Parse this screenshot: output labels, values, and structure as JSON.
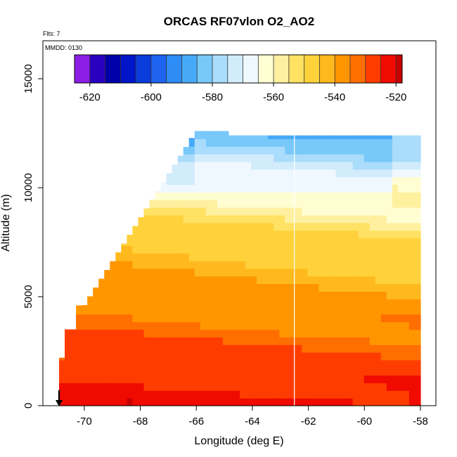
{
  "chart_data": {
    "type": "heatmap",
    "title": "ORCAS RF07vlon O2_AO2",
    "subtitle_flights": "Flts: 7",
    "subtitle_date": "MMDD: 0130",
    "xlabel": "Longitude (deg E)",
    "ylabel": "Altitude (m)",
    "xlim": [
      -71.0,
      -57.5
    ],
    "ylim": [
      0,
      16500
    ],
    "xticks": [
      -70,
      -68,
      -66,
      -64,
      -62,
      -60,
      -58
    ],
    "xtick_labels": [
      "-70",
      "-68",
      "-66",
      "-64",
      "-62",
      "-60",
      "-58"
    ],
    "yticks": [
      0,
      5000,
      10000,
      15000
    ],
    "ytick_labels": [
      "0",
      "5000",
      "10000",
      "15000"
    ],
    "colorbar": {
      "range": [
        -625,
        -518
      ],
      "ticks": [
        -620,
        -600,
        -580,
        -560,
        -540,
        -520
      ],
      "tick_labels": [
        "-620",
        "-600",
        "-580",
        "-560",
        "-540",
        "-520"
      ],
      "bins": [
        -625,
        -620,
        -615,
        -610,
        -605,
        -600,
        -595,
        -590,
        -585,
        -580,
        -575,
        -570,
        -565,
        -560,
        -555,
        -550,
        -545,
        -540,
        -535,
        -530,
        -525,
        -520,
        -518
      ],
      "colors": [
        "#8c1ee6",
        "#2a00c0",
        "#0000a8",
        "#0014c8",
        "#0a3cdc",
        "#1e64f0",
        "#2d8cf5",
        "#46aaf8",
        "#78c8fa",
        "#aadcfb",
        "#d2ecfc",
        "#f0f8ff",
        "#fffdd2",
        "#fff0a0",
        "#ffe164",
        "#ffd23c",
        "#ffb91e",
        "#ff9600",
        "#ff6e00",
        "#ff3c00",
        "#f00a00",
        "#c80000",
        "#961414"
      ]
    },
    "profile_longitude": -62.5,
    "marker_longitude": -70.9,
    "field_description": "O2_AO2 curtain: ~-520 near surface rising to ~-575 to -590 at 10-12.5 km"
  }
}
